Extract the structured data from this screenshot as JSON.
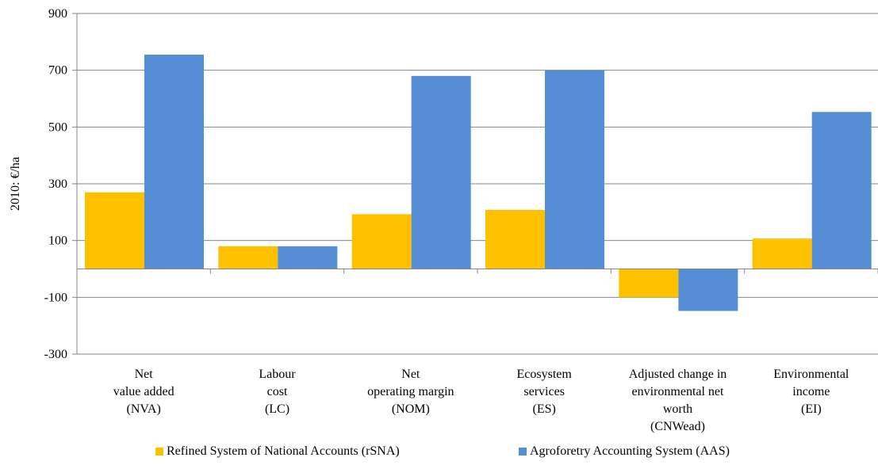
{
  "chart_data": {
    "type": "bar",
    "ylabel": "2010: €/ha",
    "ylim": [
      -300,
      900
    ],
    "yticks": [
      900,
      700,
      500,
      300,
      100,
      -100,
      -300
    ],
    "grid": true,
    "legend_position": "bottom",
    "categories": [
      [
        "Net",
        "value added",
        "(NVA)"
      ],
      [
        "Labour",
        "cost",
        "(LC)"
      ],
      [
        "Net",
        "operating margin",
        "(NOM)"
      ],
      [
        "Ecosystem",
        "services",
        "(ES)"
      ],
      [
        "Adjusted change in",
        "environmental net",
        "worth",
        "(CNWead)"
      ],
      [
        "Environmental",
        "income",
        "(EI)"
      ]
    ],
    "series": [
      {
        "name": "Refined System of National Accounts (rSNA)",
        "color": "#FFC000",
        "values": [
          270,
          80,
          193,
          208,
          -100,
          107
        ]
      },
      {
        "name": "Agroforetry Accounting System (AAS)",
        "color": "#558ED5",
        "values": [
          755,
          80,
          680,
          700,
          -148,
          553
        ]
      }
    ]
  }
}
